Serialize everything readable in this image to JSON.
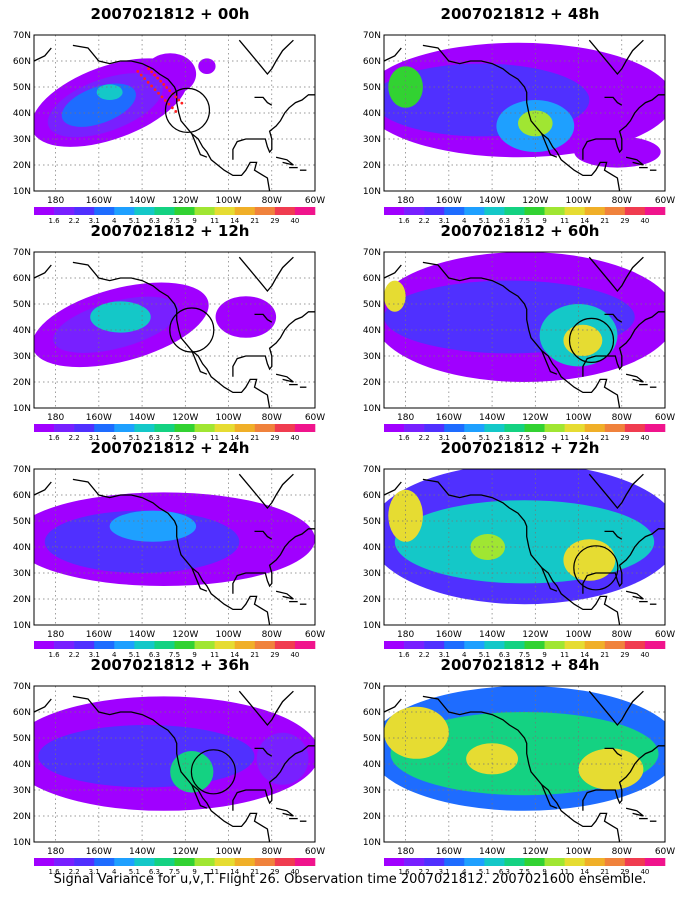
{
  "footer": "Signal Variance for u,v,T. Flight 26. Observation time 2007021812. 2007021600 ensemble.",
  "axes": {
    "lat_labels": [
      "70N",
      "60N",
      "50N",
      "40N",
      "30N",
      "20N",
      "10N"
    ],
    "lon_labels": [
      "180",
      "160W",
      "140W",
      "120W",
      "100W",
      "80W",
      "60W"
    ],
    "lat_range": [
      10,
      70
    ],
    "lon_range_deg_east": [
      170,
      300
    ]
  },
  "colorbar": {
    "levels": [
      "1.6",
      "2.2",
      "3.1",
      "4",
      "5.1",
      "6.3",
      "7.5",
      "9",
      "11",
      "14",
      "21",
      "29",
      "40"
    ],
    "colors": [
      "#a000ff",
      "#7820ff",
      "#5030ff",
      "#1e6cff",
      "#1ea0ff",
      "#14c8c8",
      "#14d282",
      "#32d232",
      "#a0e632",
      "#e6dc32",
      "#f0af28",
      "#f0823c",
      "#f03c50",
      "#f0148c"
    ]
  },
  "panels": [
    {
      "title": "2007021812 + 00h",
      "circle": {
        "lon": 241,
        "lat": 41
      },
      "red_dots": true,
      "blobs": [
        {
          "lon": 205,
          "lat": 44,
          "rx": 38,
          "ry": 14,
          "rot": -20,
          "level": 0
        },
        {
          "lon": 233,
          "lat": 55,
          "rx": 12,
          "ry": 8,
          "rot": 0,
          "level": 0
        },
        {
          "lon": 250,
          "lat": 58,
          "rx": 4,
          "ry": 3,
          "rot": 0,
          "level": 0
        },
        {
          "lon": 203,
          "lat": 43,
          "rx": 28,
          "ry": 10,
          "rot": -20,
          "level": 1
        },
        {
          "lon": 200,
          "lat": 43,
          "rx": 18,
          "ry": 7,
          "rot": -20,
          "level": 3
        },
        {
          "lon": 205,
          "lat": 48,
          "rx": 6,
          "ry": 3,
          "rot": 0,
          "level": 5
        }
      ]
    },
    {
      "title": "2007021812 + 48h",
      "circle": null,
      "red_dots": false,
      "blobs": [
        {
          "lon": 232,
          "lat": 45,
          "rx": 72,
          "ry": 22,
          "rot": 0,
          "level": 0
        },
        {
          "lon": 215,
          "lat": 45,
          "rx": 50,
          "ry": 14,
          "rot": 0,
          "level": 2
        },
        {
          "lon": 240,
          "lat": 35,
          "rx": 18,
          "ry": 10,
          "rot": 0,
          "level": 4
        },
        {
          "lon": 240,
          "lat": 36,
          "rx": 8,
          "ry": 5,
          "rot": 0,
          "level": 8
        },
        {
          "lon": 180,
          "lat": 50,
          "rx": 8,
          "ry": 8,
          "rot": 0,
          "level": 7
        },
        {
          "lon": 278,
          "lat": 25,
          "rx": 20,
          "ry": 6,
          "rot": 0,
          "level": 0
        }
      ]
    },
    {
      "title": "2007021812 + 12h",
      "circle": {
        "lon": 243,
        "lat": 40
      },
      "red_dots": false,
      "blobs": [
        {
          "lon": 210,
          "lat": 42,
          "rx": 42,
          "ry": 14,
          "rot": -15,
          "level": 0
        },
        {
          "lon": 268,
          "lat": 45,
          "rx": 14,
          "ry": 8,
          "rot": 0,
          "level": 0
        },
        {
          "lon": 208,
          "lat": 42,
          "rx": 30,
          "ry": 9,
          "rot": -15,
          "level": 1
        },
        {
          "lon": 210,
          "lat": 45,
          "rx": 14,
          "ry": 6,
          "rot": 0,
          "level": 5
        }
      ]
    },
    {
      "title": "2007021812 + 60h",
      "circle": {
        "lon": 266,
        "lat": 36
      },
      "red_dots": false,
      "blobs": [
        {
          "lon": 235,
          "lat": 45,
          "rx": 70,
          "ry": 25,
          "rot": 0,
          "level": 0
        },
        {
          "lon": 228,
          "lat": 45,
          "rx": 58,
          "ry": 14,
          "rot": 0,
          "level": 2
        },
        {
          "lon": 260,
          "lat": 38,
          "rx": 18,
          "ry": 12,
          "rot": 0,
          "level": 5
        },
        {
          "lon": 262,
          "lat": 36,
          "rx": 9,
          "ry": 6,
          "rot": 0,
          "level": 9
        },
        {
          "lon": 175,
          "lat": 53,
          "rx": 5,
          "ry": 6,
          "rot": 0,
          "level": 9
        }
      ]
    },
    {
      "title": "2007021812 + 24h",
      "circle": null,
      "red_dots": false,
      "blobs": [
        {
          "lon": 230,
          "lat": 43,
          "rx": 70,
          "ry": 18,
          "rot": 0,
          "level": 0
        },
        {
          "lon": 220,
          "lat": 42,
          "rx": 45,
          "ry": 12,
          "rot": 0,
          "level": 2
        },
        {
          "lon": 225,
          "lat": 48,
          "rx": 20,
          "ry": 6,
          "rot": 0,
          "level": 4
        }
      ]
    },
    {
      "title": "2007021812 + 72h",
      "circle": {
        "lon": 268,
        "lat": 32
      },
      "red_dots": false,
      "blobs": [
        {
          "lon": 235,
          "lat": 45,
          "rx": 72,
          "ry": 27,
          "rot": 0,
          "level": 2
        },
        {
          "lon": 235,
          "lat": 42,
          "rx": 60,
          "ry": 16,
          "rot": 0,
          "level": 5
        },
        {
          "lon": 265,
          "lat": 35,
          "rx": 12,
          "ry": 8,
          "rot": 0,
          "level": 9
        },
        {
          "lon": 180,
          "lat": 52,
          "rx": 8,
          "ry": 10,
          "rot": 0,
          "level": 9
        },
        {
          "lon": 218,
          "lat": 40,
          "rx": 8,
          "ry": 5,
          "rot": 0,
          "level": 8
        }
      ]
    },
    {
      "title": "2007021812 + 36h",
      "circle": {
        "lon": 253,
        "lat": 37
      },
      "red_dots": false,
      "blobs": [
        {
          "lon": 230,
          "lat": 44,
          "rx": 72,
          "ry": 22,
          "rot": 0,
          "level": 0
        },
        {
          "lon": 222,
          "lat": 43,
          "rx": 50,
          "ry": 12,
          "rot": 0,
          "level": 2
        },
        {
          "lon": 243,
          "lat": 37,
          "rx": 10,
          "ry": 8,
          "rot": 0,
          "level": 6
        },
        {
          "lon": 285,
          "lat": 42,
          "rx": 12,
          "ry": 10,
          "rot": 0,
          "level": 1
        }
      ]
    },
    {
      "title": "2007021812 + 84h",
      "circle": null,
      "red_dots": false,
      "blobs": [
        {
          "lon": 235,
          "lat": 46,
          "rx": 72,
          "ry": 24,
          "rot": 0,
          "level": 3
        },
        {
          "lon": 235,
          "lat": 44,
          "rx": 62,
          "ry": 16,
          "rot": 0,
          "level": 6
        },
        {
          "lon": 185,
          "lat": 52,
          "rx": 15,
          "ry": 10,
          "rot": 0,
          "level": 9
        },
        {
          "lon": 220,
          "lat": 42,
          "rx": 12,
          "ry": 6,
          "rot": 0,
          "level": 9
        },
        {
          "lon": 275,
          "lat": 38,
          "rx": 15,
          "ry": 8,
          "rot": 0,
          "level": 9
        }
      ]
    }
  ]
}
